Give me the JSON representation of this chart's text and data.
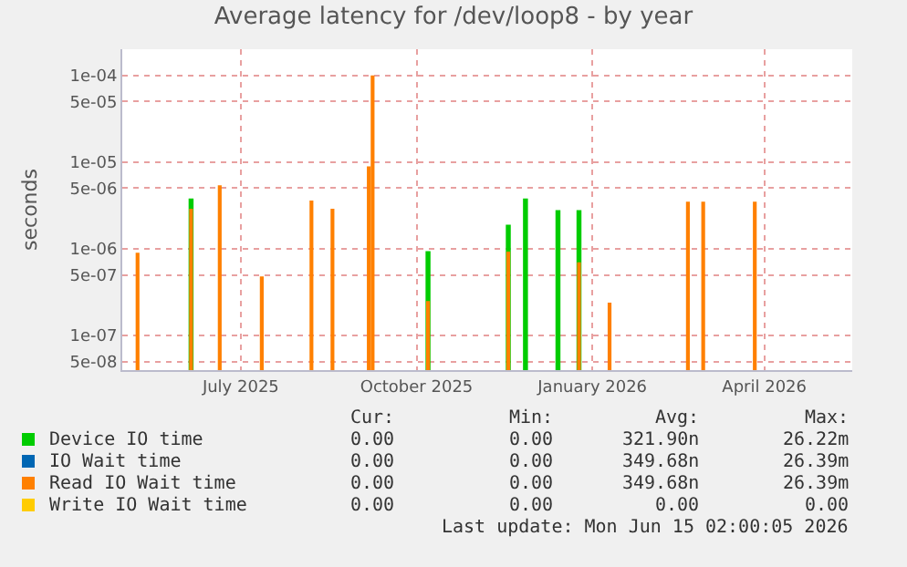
{
  "chart_data": {
    "type": "bar",
    "title": "Average latency for /dev/loop8 - by year",
    "ylabel": "seconds",
    "log": "y",
    "grid": true,
    "legend": "bottom",
    "xlim": [
      "2025-04-30",
      "2026-05-17"
    ],
    "xticks": [
      {
        "value": "2025-07-01",
        "label": "July 2025"
      },
      {
        "value": "2025-10-01",
        "label": "October 2025"
      },
      {
        "value": "2026-01-01",
        "label": "January 2026"
      },
      {
        "value": "2026-04-01",
        "label": "April 2026"
      }
    ],
    "ylim": [
      4e-08,
      0.0002
    ],
    "yticks": [
      {
        "value": 5e-08,
        "label": "5e-08"
      },
      {
        "value": 1e-07,
        "label": "1e-07"
      },
      {
        "value": 5e-07,
        "label": "5e-07"
      },
      {
        "value": 1e-06,
        "label": "1e-06"
      },
      {
        "value": 5e-06,
        "label": "5e-06"
      },
      {
        "value": 1e-05,
        "label": "1e-05"
      },
      {
        "value": 5e-05,
        "label": "5e-05"
      },
      {
        "value": 0.0001,
        "label": "1e-04"
      }
    ],
    "series": [
      {
        "name": "Device IO time",
        "color": "#00cc00",
        "x": [
          "2025-06-05",
          "2025-10-07",
          "2025-11-18",
          "2025-11-27",
          "2025-12-14",
          "2025-12-25"
        ],
        "values": [
          3.8e-06,
          9.4e-07,
          1.9e-06,
          3.8e-06,
          2.8e-06,
          2.8e-06
        ]
      },
      {
        "name": "IO Wait time",
        "color": "#0066b3"
      },
      {
        "name": "Read IO Wait time",
        "color": "#ff8000",
        "x": [
          "2025-05-08",
          "2025-06-05",
          "2025-06-20",
          "2025-07-12",
          "2025-08-07",
          "2025-08-18",
          "2025-09-06",
          "2025-09-08",
          "2025-10-07",
          "2025-11-18",
          "2025-12-25",
          "2026-01-10",
          "2026-02-20",
          "2026-02-28",
          "2026-03-27"
        ],
        "values": [
          9e-07,
          2.9e-06,
          5.4e-06,
          4.8e-07,
          3.6e-06,
          2.9e-06,
          8.9e-06,
          0.0001,
          2.5e-07,
          9.3e-07,
          7e-07,
          2.4e-07,
          3.5e-06,
          3.5e-06,
          3.5e-06
        ]
      },
      {
        "name": "Write IO Wait time",
        "color": "#ffcc00"
      }
    ],
    "annotations": [
      "Cur:",
      "Min:",
      "Avg:",
      "Max:",
      "0.00",
      "0.00",
      "321.90n",
      "26.22m",
      "0.00",
      "0.00",
      "349.68n",
      "26.39m",
      "0.00",
      "0.00",
      "349.68n",
      "26.39m",
      "0.00",
      "0.00",
      "0.00",
      "0.00",
      "Last update: Mon Jun 15 02:00:05 2026"
    ]
  }
}
